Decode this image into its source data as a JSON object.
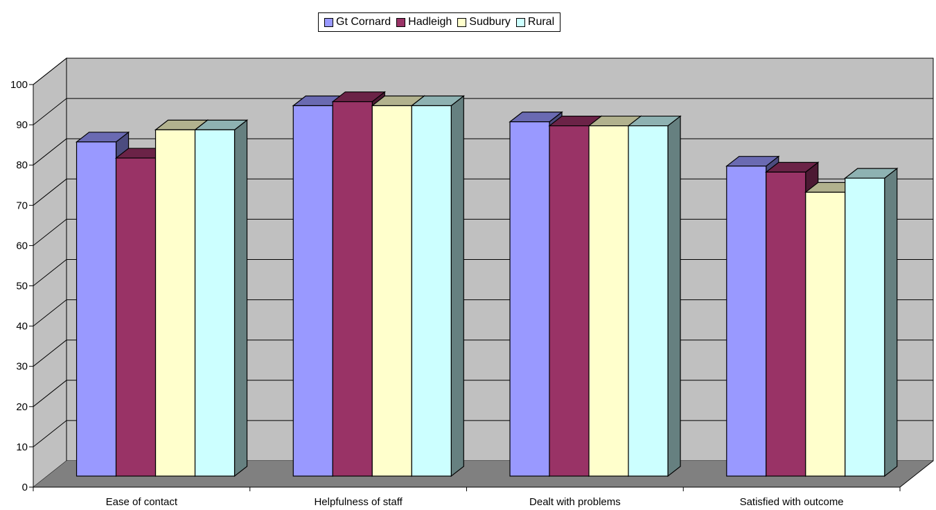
{
  "chart_data": {
    "type": "bar",
    "title": "",
    "xlabel": "",
    "ylabel": "",
    "categories": [
      "Ease of contact",
      "Helpfulness of staff",
      "Dealt with problems",
      "Satisfied with outcome"
    ],
    "series": [
      {
        "name": "Gt Cornard",
        "values": [
          83,
          92,
          88,
          77
        ]
      },
      {
        "name": "Hadleigh",
        "values": [
          79,
          93,
          87,
          75.5
        ]
      },
      {
        "name": "Sudbury",
        "values": [
          86,
          92,
          87,
          70.5
        ]
      },
      {
        "name": "Rural",
        "values": [
          86,
          92,
          87,
          74
        ]
      }
    ],
    "ylim": [
      0,
      100
    ],
    "yticks": [
      "0",
      "10",
      "20",
      "30",
      "40",
      "50",
      "60",
      "70",
      "80",
      "90",
      "100"
    ],
    "grid": true,
    "legend_position": "top",
    "style": "3d-clustered-column",
    "colors": {
      "series_front": [
        "#9999ff",
        "#993366",
        "#ffffcc",
        "#ccffff"
      ],
      "series_top": [
        "#6a6ab2",
        "#6b2347",
        "#b2b28e",
        "#8eb2b2"
      ],
      "series_side": [
        "#4c4c7f",
        "#4c1933",
        "#7f7f66",
        "#668080"
      ],
      "wall": "#c0c0c0",
      "floor": "#808080"
    }
  }
}
